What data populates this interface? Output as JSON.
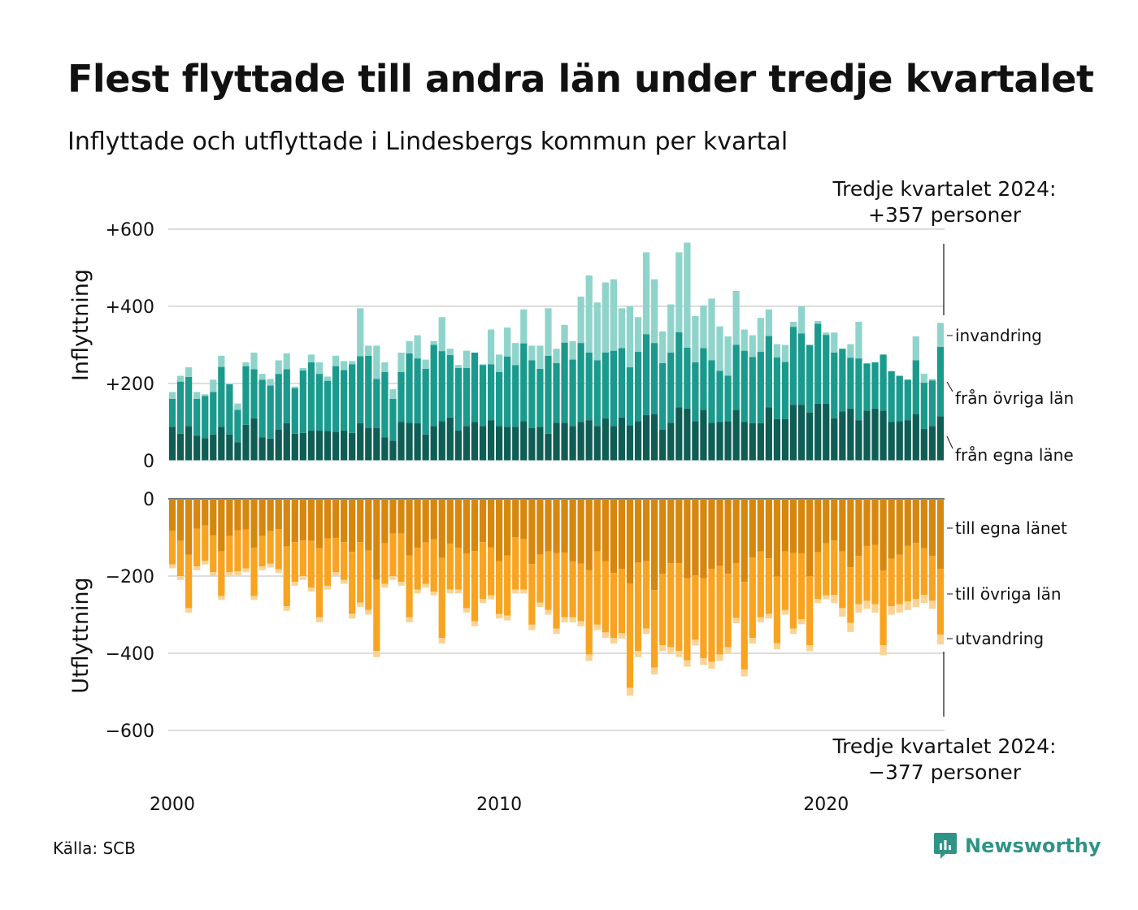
{
  "title": "Flest flyttade till andra län under tredje kvartalet",
  "subtitle": "Inflyttade och utflyttade i Lindesbergs kommun per kvartal",
  "source": "Källa: SCB",
  "logo": {
    "name": "Newsworthy",
    "icon": "newsworthy-logo-icon",
    "color": "#2f9485"
  },
  "colors": {
    "inflow_own": "#0f5e56",
    "inflow_other": "#1a9a8c",
    "inflow_imm": "#8fd4cb",
    "outflow_own": "#d6870e",
    "outflow_other": "#f8a420",
    "outflow_emig": "#fcd393",
    "grid": "#dddddd",
    "baseline": "#334455"
  },
  "chart_data": {
    "type": "bar",
    "stacked": true,
    "x_start": 2000,
    "x_step": 0.25,
    "x_ticks": [
      "2000",
      "2010",
      "2020"
    ],
    "top_panel": {
      "ylabel": "Inflyttning",
      "ylim": [
        0,
        600
      ],
      "y_ticks": [
        "0",
        "+200",
        "+400",
        "+600"
      ],
      "legend": [
        "invandring",
        "från övriga län",
        "från egna läne"
      ],
      "annotation": [
        "Tredje kvartalet 2024:",
        "+357 personer"
      ],
      "total": [
        178,
        220,
        242,
        178,
        172,
        210,
        272,
        198,
        148,
        255,
        280,
        225,
        212,
        260,
        278,
        192,
        240,
        275,
        255,
        218,
        272,
        258,
        258,
        395,
        298,
        298,
        255,
        185,
        280,
        310,
        325,
        262,
        310,
        372,
        290,
        248,
        285,
        272,
        250,
        340,
        275,
        345,
        305,
        392,
        298,
        298,
        395,
        290,
        352,
        310,
        425,
        480,
        410,
        462,
        470,
        395,
        400,
        372,
        540,
        470,
        335,
        405,
        540,
        565,
        375,
        402,
        420,
        348,
        322,
        440,
        340,
        325,
        370,
        392,
        302,
        300,
        360,
        400,
        298,
        362,
        332,
        332,
        285,
        302,
        360,
        248,
        215,
        270,
        230,
        220,
        210,
        322,
        225,
        212,
        357
      ],
      "series": [
        {
          "name": "från egna läne",
          "values": [
            88,
            70,
            90,
            65,
            58,
            68,
            88,
            68,
            48,
            93,
            110,
            60,
            57,
            80,
            97,
            70,
            72,
            78,
            78,
            77,
            75,
            78,
            72,
            97,
            85,
            85,
            60,
            52,
            100,
            98,
            97,
            68,
            90,
            102,
            112,
            78,
            90,
            100,
            90,
            105,
            90,
            88,
            88,
            102,
            85,
            88,
            70,
            98,
            98,
            90,
            100,
            105,
            90,
            110,
            90,
            112,
            92,
            102,
            118,
            120,
            80,
            98,
            138,
            135,
            102,
            132,
            98,
            100,
            102,
            132,
            100,
            97,
            97,
            138,
            108,
            108,
            145,
            145,
            125,
            148,
            148,
            110,
            128,
            135,
            105,
            130,
            135,
            130,
            100,
            102,
            105,
            120,
            82,
            90,
            115
          ]
        },
        {
          "name": "från övriga län",
          "values": [
            72,
            135,
            127,
            95,
            110,
            110,
            155,
            130,
            84,
            152,
            127,
            150,
            138,
            145,
            140,
            118,
            162,
            177,
            147,
            130,
            170,
            157,
            178,
            174,
            187,
            127,
            170,
            108,
            130,
            180,
            168,
            170,
            210,
            182,
            162,
            162,
            150,
            180,
            158,
            145,
            140,
            182,
            160,
            202,
            175,
            150,
            202,
            155,
            208,
            172,
            205,
            175,
            170,
            170,
            195,
            180,
            150,
            180,
            210,
            185,
            173,
            182,
            195,
            158,
            153,
            160,
            162,
            133,
            118,
            168,
            185,
            172,
            185,
            185,
            160,
            148,
            202,
            185,
            175,
            207,
            178,
            170,
            162,
            132,
            160,
            122,
            120,
            145,
            132,
            118,
            105,
            140,
            120,
            118,
            180
          ]
        }
      ]
    },
    "bottom_panel": {
      "ylabel": "Utflyttning",
      "ylim": [
        -600,
        0
      ],
      "y_ticks": [
        "0",
        "−200",
        "−400",
        "−600"
      ],
      "legend": [
        "till egna länet",
        "till övriga län",
        "utvandring"
      ],
      "annotation": [
        "Tredje kvartalet 2024:",
        "−377 personer"
      ],
      "total": [
        -180,
        -210,
        -295,
        -185,
        -170,
        -200,
        -262,
        -200,
        -198,
        -190,
        -262,
        -185,
        -178,
        -192,
        -290,
        -225,
        -210,
        -240,
        -320,
        -235,
        -200,
        -220,
        -310,
        -280,
        -300,
        -410,
        -230,
        -210,
        -225,
        -320,
        -245,
        -230,
        -250,
        -375,
        -245,
        -245,
        -295,
        -330,
        -270,
        -260,
        -310,
        -315,
        -245,
        -245,
        -340,
        -280,
        -300,
        -350,
        -320,
        -320,
        -330,
        -420,
        -340,
        -360,
        -375,
        -362,
        -510,
        -410,
        -350,
        -455,
        -395,
        -400,
        -410,
        -435,
        -380,
        -430,
        -440,
        -420,
        -400,
        -322,
        -460,
        -375,
        -320,
        -310,
        -390,
        -300,
        -350,
        -325,
        -395,
        -270,
        -260,
        -270,
        -305,
        -345,
        -295,
        -285,
        -295,
        -405,
        -300,
        -295,
        -288,
        -280,
        -270,
        -285,
        -377
      ]
    }
  }
}
